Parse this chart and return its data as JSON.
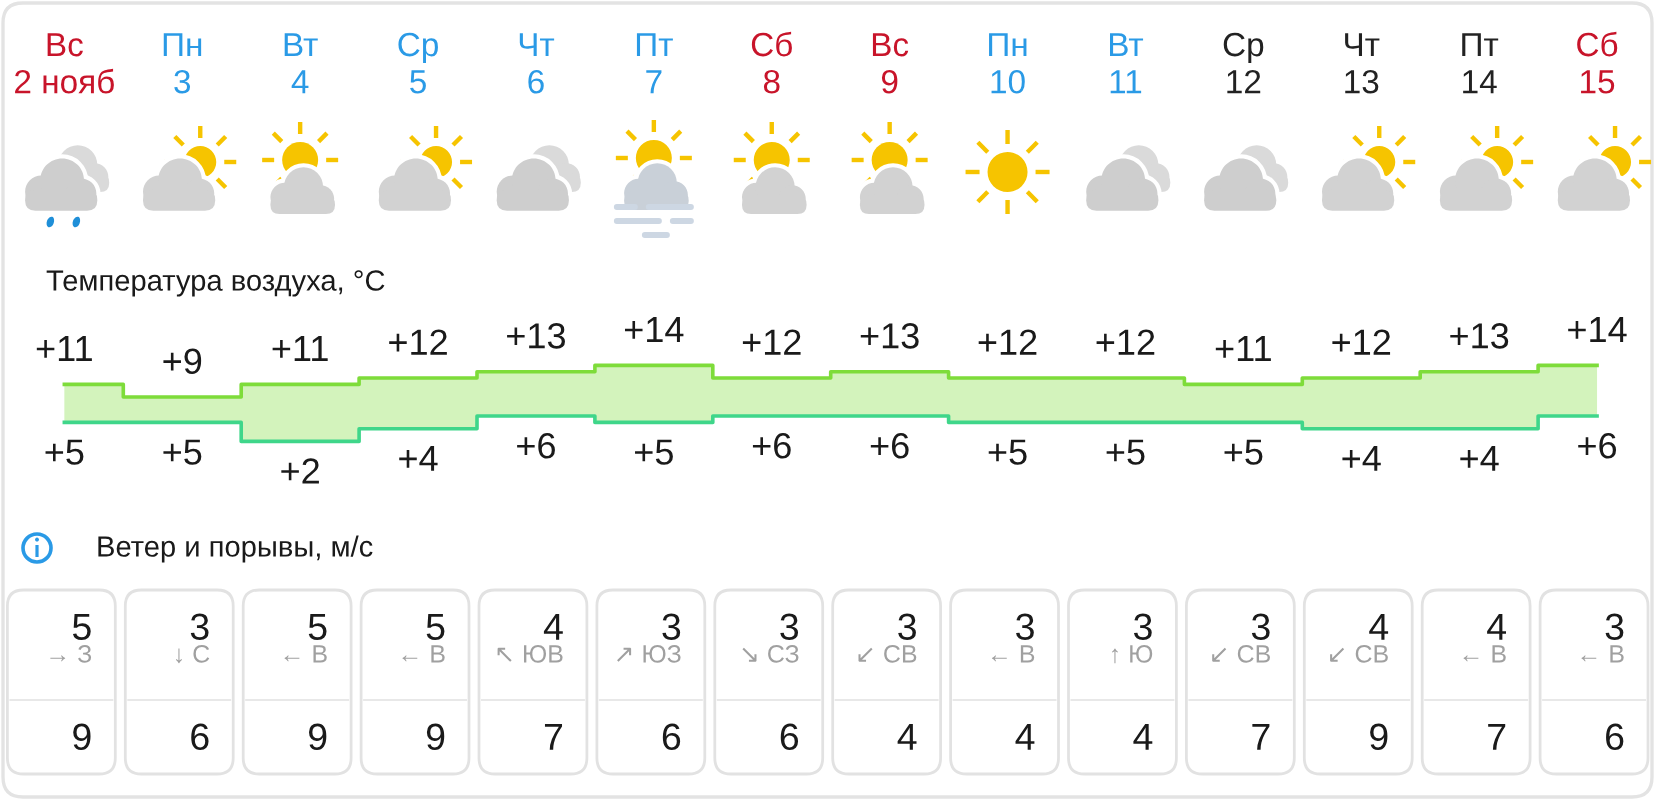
{
  "chart_data": [
    {
      "type": "step",
      "title": "Температура воздуха, °C",
      "categories": [
        "Вс\n2 нояб",
        "Пн\n3",
        "Вт\n4",
        "Ср\n5",
        "Чт\n6",
        "Пт\n7",
        "Сб\n8",
        "Вс\n9",
        "Пн\n10",
        "Вт\n11",
        "Ср\n12",
        "Чт\n13",
        "Пт\n14",
        "Сб\n15"
      ],
      "series": [
        {
          "color": "#7edc3a",
          "values": [
            11,
            9,
            11,
            12,
            13,
            14,
            12,
            13,
            12,
            12,
            11,
            12,
            13,
            14
          ],
          "value_labels": [
            "+11",
            "+9",
            "+11",
            "+12",
            "+13",
            "+14",
            "+12",
            "+13",
            "+12",
            "+12",
            "+11",
            "+12",
            "+13",
            "+14"
          ],
          "lower": [
            5,
            5,
            2,
            4,
            6,
            5,
            6,
            6,
            5,
            5,
            5,
            4,
            4,
            6
          ],
          "upper": [
            11,
            9,
            11,
            12,
            13,
            14,
            12,
            13,
            12,
            12,
            11,
            12,
            13,
            14
          ]
        },
        {
          "color": "#3fd68a",
          "values": [
            5,
            5,
            2,
            4,
            6,
            5,
            6,
            6,
            5,
            5,
            5,
            4,
            4,
            6
          ],
          "value_labels": [
            "+5",
            "+5",
            "+2",
            "+4",
            "+6",
            "+5",
            "+6",
            "+6",
            "+5",
            "+5",
            "+5",
            "+4",
            "+4",
            "+6"
          ]
        }
      ],
      "tick_labels": "x"
    },
    {
      "type": "other",
      "title": "Ветер и порывы, м/с",
      "categories": [
        "→ З",
        "↓ С",
        "← В",
        "← В",
        "↖ ЮВ",
        "↗ ЮЗ",
        "↘ СЗ",
        "↙ СВ",
        "← В",
        "↑ Ю",
        "↙ СВ",
        "↙ СВ",
        "← В",
        "← В"
      ],
      "series": [
        {
          "values": [
            5,
            3,
            5,
            5,
            4,
            3,
            3,
            3,
            3,
            3,
            3,
            4,
            4,
            3
          ]
        },
        {
          "values": [
            9,
            6,
            9,
            9,
            7,
            6,
            6,
            4,
            4,
            4,
            7,
            9,
            7,
            6
          ]
        }
      ],
      "data_labels": true
    }
  ]
}
